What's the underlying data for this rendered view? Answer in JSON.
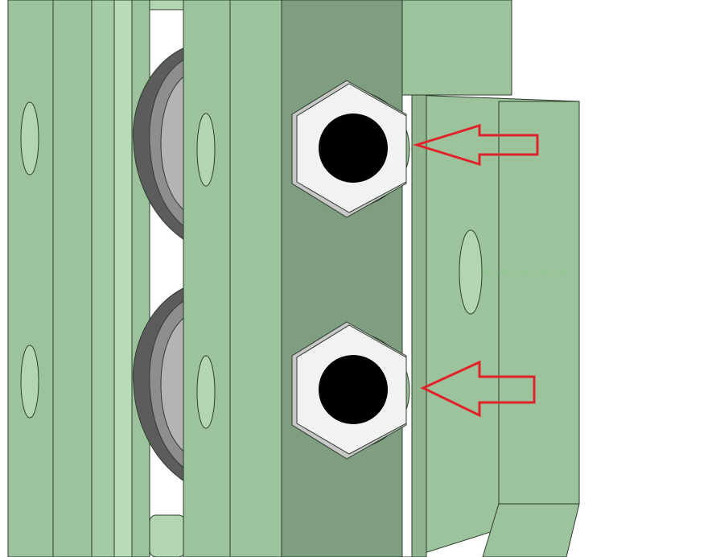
{
  "palette": {
    "background": "#ffffff",
    "part_green": "#9dc39c",
    "part_green_light": "#b3d6b2",
    "part_green_dark": "#7f9e80",
    "part_green_shadow": "#6e8f6e",
    "outline": "#2c3d2c",
    "wheel_gray": "#8e8e8e",
    "wheel_gray_light": "#b4b4b4",
    "wheel_gray_dark": "#5c5c5c",
    "nut_white": "#f2f2f2",
    "nut_shade": "#c8c8c8",
    "bore_black": "#000000",
    "annotation_red": "#e0222a"
  },
  "annotations": [
    {
      "name": "arrow-pointing-upper-nut",
      "direction": "left"
    },
    {
      "name": "arrow-pointing-lower-nut",
      "direction": "left"
    }
  ],
  "parts": {
    "nuts": [
      "upper-hex-nut",
      "lower-hex-nut"
    ],
    "wheels": [
      "upper-v-wheel",
      "lower-v-wheel"
    ]
  }
}
